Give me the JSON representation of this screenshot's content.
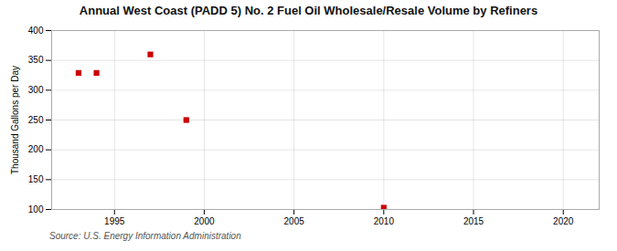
{
  "chart_data": {
    "type": "scatter",
    "title": "Annual West Coast (PADD 5) No. 2 Fuel Oil Wholesale/Resale Volume by Refiners",
    "ylabel": "Thousand Gallons per Day",
    "source": "Source: U.S. Energy Information Administration",
    "x": [
      1993,
      1994,
      1997,
      1999,
      2010
    ],
    "values": [
      329,
      329,
      360,
      250,
      103
    ],
    "color": "#cc0000",
    "marker": "square",
    "xlim": [
      1991.5,
      2022
    ],
    "ylim": [
      100,
      400
    ],
    "xticks": [
      1995,
      2000,
      2005,
      2010,
      2015,
      2020
    ],
    "yticks": [
      100,
      150,
      200,
      250,
      300,
      350,
      400
    ],
    "grid": true
  }
}
